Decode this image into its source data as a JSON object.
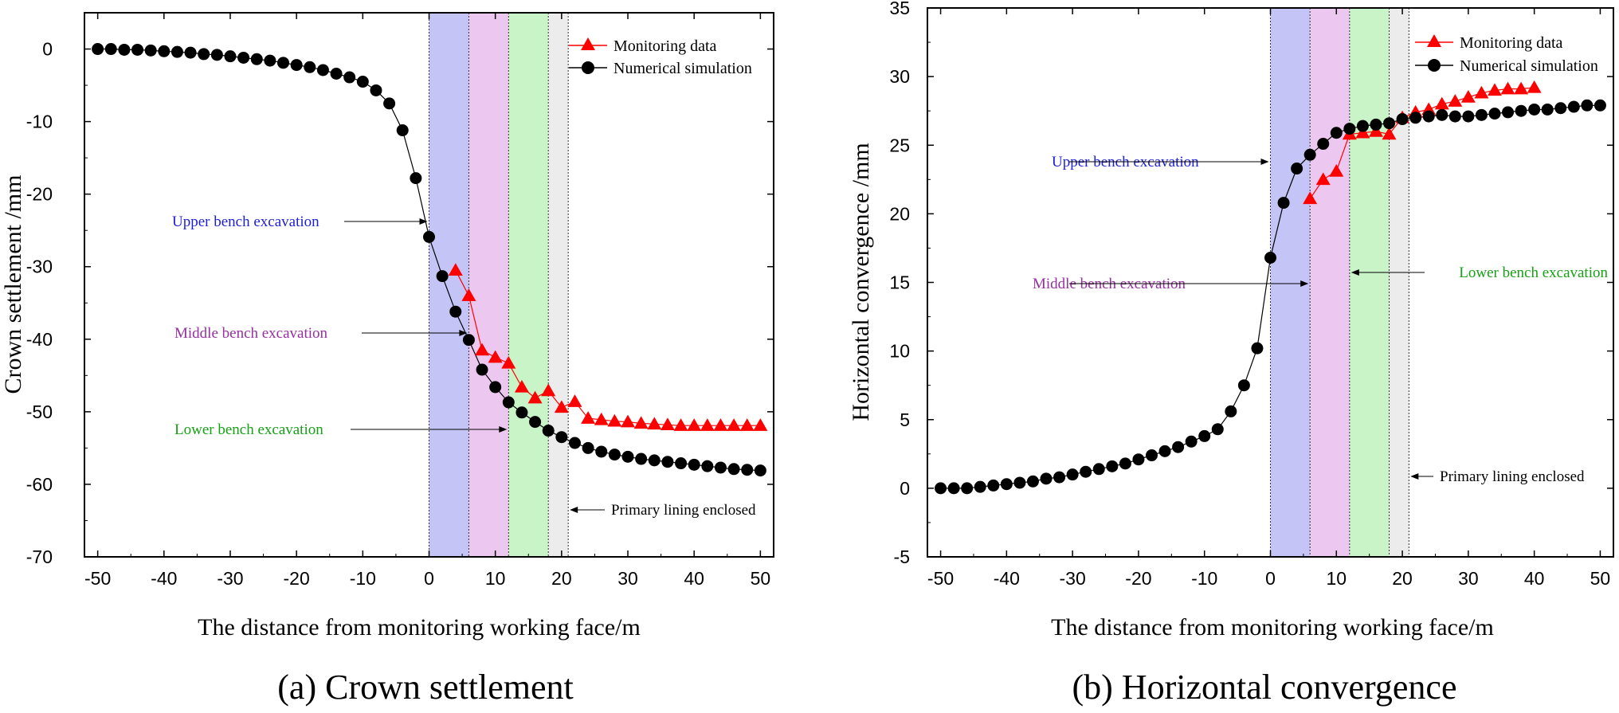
{
  "chart_data": [
    {
      "type": "scatter",
      "caption": "(a) Crown settlement",
      "xlabel": "The distance from monitoring working face/m",
      "ylabel": "Crown settlement /mm",
      "xlim": [
        -52,
        52
      ],
      "ylim": [
        -70,
        5
      ],
      "xticks": [
        -50,
        -40,
        -30,
        -20,
        -10,
        0,
        10,
        20,
        30,
        40,
        50
      ],
      "yticks": [
        0,
        -10,
        -20,
        -30,
        -40,
        -50,
        -60,
        -70
      ],
      "xtick_labels": [
        "-50",
        "-40",
        "-30",
        "-20",
        "-10",
        "0",
        "10",
        "20",
        "30",
        "40",
        "50"
      ],
      "ytick_labels": [
        "0",
        "-10",
        "-20",
        "-30",
        "-40",
        "-50",
        "-60",
        "-70"
      ],
      "bands": [
        {
          "name": "upper",
          "from": 0,
          "to": 6,
          "color": "#c4c4f6"
        },
        {
          "name": "middle",
          "from": 6,
          "to": 12,
          "color": "#ecc8f0"
        },
        {
          "name": "lower",
          "from": 12,
          "to": 18,
          "color": "#c8f4c8"
        },
        {
          "name": "lining",
          "from": 18,
          "to": 21,
          "color": "#ececec"
        }
      ],
      "legend": {
        "position": "top-right",
        "items": [
          "Monitoring data",
          "Numerical simulation"
        ]
      },
      "annotations": [
        {
          "label": "Upper bench excavation",
          "color": "#1e1ed2",
          "point": [
            0,
            -24.5
          ]
        },
        {
          "label": "Middle bench excavation",
          "color": "#9630a0",
          "point": [
            6,
            -39.5
          ]
        },
        {
          "label": "Lower bench excavation",
          "color": "#16a016",
          "point": [
            12,
            -52.5
          ]
        },
        {
          "label": "Primary lining enclosed",
          "color": "#000000",
          "point": [
            21,
            -63.5
          ]
        }
      ],
      "series": [
        {
          "name": "Numerical simulation",
          "color": "#000000",
          "marker": "circle",
          "x": [
            -50,
            -48,
            -46,
            -44,
            -42,
            -40,
            -38,
            -36,
            -34,
            -32,
            -30,
            -28,
            -26,
            -24,
            -22,
            -20,
            -18,
            -16,
            -14,
            -12,
            -10,
            -8,
            -6,
            -4,
            -2,
            0,
            2,
            4,
            6,
            8,
            10,
            12,
            14,
            16,
            18,
            20,
            22,
            24,
            26,
            28,
            30,
            32,
            34,
            36,
            38,
            40,
            42,
            44,
            46,
            48,
            50
          ],
          "y": [
            0,
            0,
            -0.1,
            -0.1,
            -0.2,
            -0.3,
            -0.4,
            -0.5,
            -0.7,
            -0.8,
            -1.0,
            -1.2,
            -1.4,
            -1.6,
            -1.9,
            -2.2,
            -2.5,
            -2.9,
            -3.4,
            -3.9,
            -4.5,
            -5.7,
            -7.5,
            -11.2,
            -17.8,
            -25.9,
            -31.3,
            -36.2,
            -40.1,
            -44.2,
            -46.6,
            -48.7,
            -50.1,
            -51.4,
            -52.6,
            -53.5,
            -54.3,
            -55.0,
            -55.5,
            -55.9,
            -56.2,
            -56.5,
            -56.7,
            -56.9,
            -57.1,
            -57.3,
            -57.5,
            -57.7,
            -57.9,
            -58.0,
            -58.1
          ]
        },
        {
          "name": "Monitoring data",
          "color": "#ff0000",
          "marker": "triangle",
          "x": [
            4,
            6,
            8,
            10,
            12,
            14,
            16,
            18,
            20,
            22,
            24,
            26,
            28,
            30,
            32,
            34,
            36,
            38,
            40,
            42,
            44,
            46,
            48,
            50
          ],
          "y": [
            -30.5,
            -34,
            -41.5,
            -42.5,
            -43.3,
            -46.6,
            -48.1,
            -47.1,
            -49.4,
            -48.6,
            -50.9,
            -51.1,
            -51.3,
            -51.4,
            -51.6,
            -51.7,
            -51.8,
            -51.9,
            -51.9,
            -51.9,
            -51.9,
            -51.9,
            -51.9,
            -51.9
          ]
        }
      ]
    },
    {
      "type": "scatter",
      "caption": "(b) Horizontal convergence",
      "xlabel": "The distance from monitoring working face/m",
      "ylabel": "Horizontal convergence /mm",
      "xlim": [
        -52,
        52
      ],
      "ylim": [
        -5,
        35
      ],
      "xticks": [
        -50,
        -40,
        -30,
        -20,
        -10,
        0,
        10,
        20,
        30,
        40,
        50
      ],
      "yticks": [
        -5,
        0,
        5,
        10,
        15,
        20,
        25,
        30,
        35
      ],
      "xtick_labels": [
        "-50",
        "-40",
        "-30",
        "-20",
        "-10",
        "0",
        "10",
        "20",
        "30",
        "40",
        "50"
      ],
      "ytick_labels": [
        "-5",
        "0",
        "5",
        "10",
        "15",
        "20",
        "25",
        "30",
        "35"
      ],
      "bands": [
        {
          "name": "upper",
          "from": 0,
          "to": 6,
          "color": "#c4c4f6"
        },
        {
          "name": "middle",
          "from": 6,
          "to": 12,
          "color": "#ecc8f0"
        },
        {
          "name": "lower",
          "from": 12,
          "to": 18,
          "color": "#c8f4c8"
        },
        {
          "name": "lining",
          "from": 18,
          "to": 21,
          "color": "#ececec"
        }
      ],
      "legend": {
        "position": "top-right",
        "items": [
          "Monitoring data",
          "Numerical simulation"
        ]
      },
      "annotations": [
        {
          "label": "Upper bench excavation",
          "color": "#1e1ed2",
          "point": [
            0,
            23.6
          ]
        },
        {
          "label": "Middle bench excavation",
          "color": "#9630a0",
          "point": [
            6,
            14.6
          ]
        },
        {
          "label": "Lower bench excavation",
          "color": "#16a016",
          "point": [
            12,
            15.6
          ]
        },
        {
          "label": "Primary lining enclosed",
          "color": "#000000",
          "point": [
            21,
            0.5
          ]
        }
      ],
      "series": [
        {
          "name": "Numerical simulation",
          "color": "#000000",
          "marker": "circle",
          "x": [
            -50,
            -48,
            -46,
            -44,
            -42,
            -40,
            -38,
            -36,
            -34,
            -32,
            -30,
            -28,
            -26,
            -24,
            -22,
            -20,
            -18,
            -16,
            -14,
            -12,
            -10,
            -8,
            -6,
            -4,
            -2,
            0,
            2,
            4,
            6,
            8,
            10,
            12,
            14,
            16,
            18,
            20,
            22,
            24,
            26,
            28,
            30,
            32,
            34,
            36,
            38,
            40,
            42,
            44,
            46,
            48,
            50
          ],
          "y": [
            0,
            0,
            0,
            0.1,
            0.2,
            0.3,
            0.4,
            0.5,
            0.7,
            0.8,
            1.0,
            1.2,
            1.4,
            1.6,
            1.8,
            2.1,
            2.4,
            2.7,
            3.0,
            3.4,
            3.8,
            4.3,
            5.6,
            7.5,
            10.2,
            16.8,
            20.8,
            23.3,
            24.3,
            25.1,
            25.9,
            26.2,
            26.4,
            26.5,
            26.6,
            26.9,
            27.0,
            27.1,
            27.2,
            27.1,
            27.1,
            27.2,
            27.3,
            27.4,
            27.5,
            27.6,
            27.6,
            27.7,
            27.8,
            27.9,
            27.9
          ]
        },
        {
          "name": "Monitoring data",
          "color": "#ff0000",
          "marker": "triangle",
          "x": [
            6,
            8,
            10,
            12,
            14,
            16,
            18,
            20,
            22,
            24,
            26,
            28,
            30,
            32,
            34,
            36,
            38,
            40
          ],
          "y": [
            21.1,
            22.5,
            23.1,
            25.8,
            25.9,
            26.0,
            25.8,
            27.0,
            27.4,
            27.6,
            28.0,
            28.2,
            28.5,
            28.8,
            29.0,
            29.1,
            29.1,
            29.2
          ]
        }
      ]
    }
  ]
}
